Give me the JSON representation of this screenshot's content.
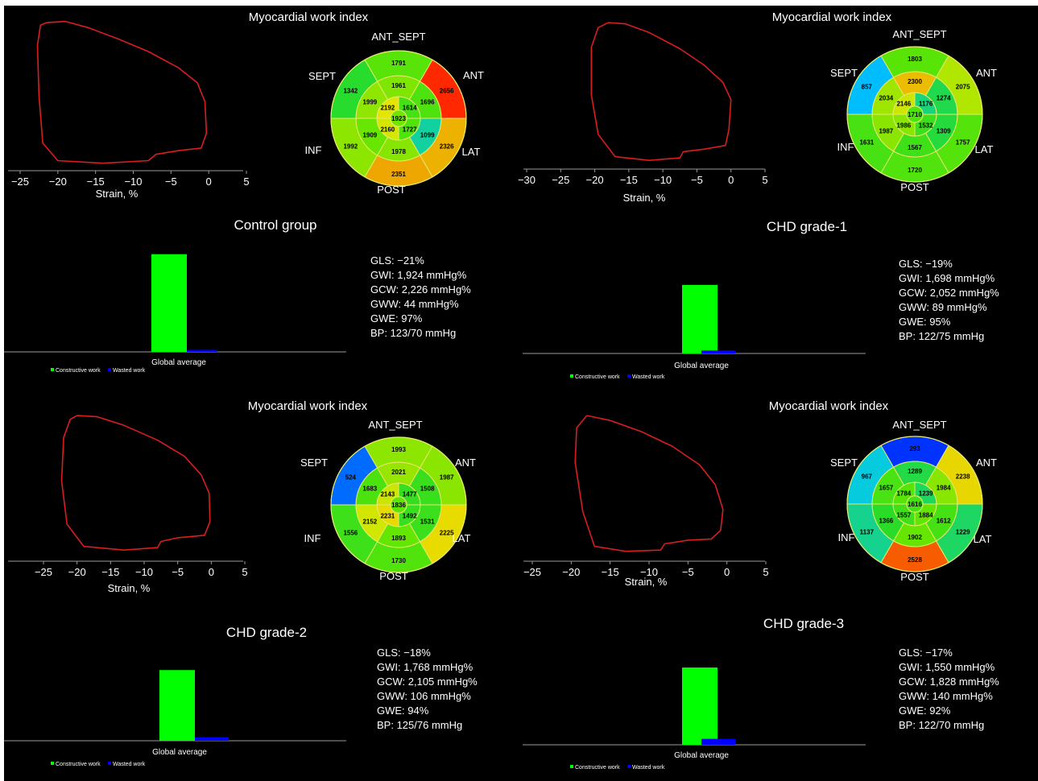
{
  "colors": {
    "background": "#000000",
    "loop": "#d81e1e",
    "constructive": "#00ff00",
    "wasted": "#0000ff",
    "text": "#ffffff"
  },
  "bullseye_labels": [
    "ANT_SEPT",
    "ANT",
    "LAT",
    "POST",
    "INF",
    "SEPT"
  ],
  "chart_data": [
    {
      "panel": "Control group",
      "title": "Myocardial work index",
      "loop": {
        "type": "line",
        "xlabel": "Strain, %",
        "xticks": [
          -25,
          -20,
          -15,
          -10,
          -5,
          0,
          5
        ],
        "xlim": [
          -27,
          5
        ],
        "points": [
          [
            -21.5,
            118
          ],
          [
            -19,
            119
          ],
          [
            -16,
            114
          ],
          [
            -12,
            105
          ],
          [
            -8,
            95
          ],
          [
            -4,
            82
          ],
          [
            -1.5,
            70
          ],
          [
            -0.5,
            55
          ],
          [
            -0.3,
            30
          ],
          [
            -1,
            18
          ],
          [
            -4,
            16
          ],
          [
            -7,
            13
          ],
          [
            -8,
            8
          ],
          [
            -14,
            6
          ],
          [
            -20,
            8
          ],
          [
            -22,
            22
          ],
          [
            -22.5,
            60
          ],
          [
            -22.7,
            100
          ],
          [
            -22.3,
            116
          ],
          [
            -21.5,
            118
          ]
        ]
      },
      "bullseye": {
        "type": "heatmap",
        "outer": {
          "ANT_SEPT": 1791,
          "ANT": 2656,
          "LAT": 2326,
          "POST": 2351,
          "INF": 1992,
          "SEPT": 1342
        },
        "mid": {
          "ANT_SEPT": 1961,
          "ANT": 1696,
          "LAT": 1099,
          "POST": 1978,
          "INF": 1909,
          "SEPT": 1999
        },
        "inner": {
          "ANT": 1614,
          "LAT": 1727,
          "INF": 2160,
          "SEPT": 2192
        },
        "apex": 1923
      },
      "bars": {
        "type": "bar",
        "categories": [
          "Global average"
        ],
        "series": [
          {
            "name": "Constructive work",
            "values": [
              2226
            ]
          },
          {
            "name": "Wasted work",
            "values": [
              44
            ]
          }
        ]
      },
      "stats": [
        "GLS: −21%",
        "GWI: 1,924 mmHg%",
        "GCW: 2,226 mmHg%",
        "GWW: 44 mmHg%",
        "GWE: 97%",
        "BP: 123/70 mmHg"
      ]
    },
    {
      "panel": "CHD grade-1",
      "title": "Myocardial work index",
      "loop": {
        "type": "line",
        "xlabel": "Strain, %",
        "xticks": [
          -30,
          -25,
          -20,
          -15,
          -10,
          -5,
          0,
          5
        ],
        "xlim": [
          -31,
          5
        ],
        "points": [
          [
            -18,
            118
          ],
          [
            -15.5,
            117
          ],
          [
            -12,
            110
          ],
          [
            -7.5,
            97
          ],
          [
            -4,
            84
          ],
          [
            -1.2,
            70
          ],
          [
            0,
            56
          ],
          [
            -0.3,
            32
          ],
          [
            -0.8,
            19
          ],
          [
            -4,
            16
          ],
          [
            -7,
            14
          ],
          [
            -7.5,
            9
          ],
          [
            -12,
            7
          ],
          [
            -17,
            10
          ],
          [
            -19.5,
            28
          ],
          [
            -20.5,
            60
          ],
          [
            -20.5,
            98
          ],
          [
            -19.5,
            114
          ],
          [
            -18,
            118
          ]
        ]
      },
      "bullseye": {
        "type": "heatmap",
        "outer": {
          "ANT_SEPT": 1803,
          "ANT": 2075,
          "LAT": 1757,
          "POST": 1720,
          "INF": 1631,
          "SEPT": 857
        },
        "mid": {
          "ANT_SEPT": 2300,
          "ANT": 1274,
          "LAT": 1309,
          "POST": 1567,
          "INF": 1987,
          "SEPT": 2034
        },
        "inner": {
          "ANT": 1176,
          "LAT": 1532,
          "INF": 1986,
          "SEPT": 2146
        },
        "apex": 1710
      },
      "bars": {
        "type": "bar",
        "categories": [
          "Global average"
        ],
        "series": [
          {
            "name": "Constructive work",
            "values": [
              2052
            ]
          },
          {
            "name": "Wasted work",
            "values": [
              89
            ]
          }
        ]
      },
      "stats": [
        "GLS: −19%",
        "GWI: 1,698 mmHg%",
        "GCW: 2,052 mmHg%",
        "GWW: 89 mmHg%",
        "GWE: 95%",
        "BP: 122/75 mmHg"
      ]
    },
    {
      "panel": "CHD grade-2",
      "title": "Myocardial work index",
      "loop": {
        "type": "line",
        "xlabel": "Strain, %",
        "xticks": [
          -25,
          -20,
          -15,
          -10,
          -5,
          0,
          5
        ],
        "xlim": [
          -28,
          5
        ],
        "points": [
          [
            -20,
            118
          ],
          [
            -17,
            117
          ],
          [
            -13,
            110
          ],
          [
            -8,
            98
          ],
          [
            -4,
            85
          ],
          [
            -1.5,
            70
          ],
          [
            -0.3,
            55
          ],
          [
            -0.2,
            32
          ],
          [
            -1,
            21
          ],
          [
            -5,
            19
          ],
          [
            -7.5,
            16
          ],
          [
            -8,
            11
          ],
          [
            -13,
            9
          ],
          [
            -19,
            12
          ],
          [
            -21.5,
            30
          ],
          [
            -22.3,
            65
          ],
          [
            -22,
            100
          ],
          [
            -21,
            115
          ],
          [
            -20,
            118
          ]
        ]
      },
      "bullseye": {
        "type": "heatmap",
        "outer": {
          "ANT_SEPT": 1993,
          "ANT": 1987,
          "LAT": 2225,
          "POST": 1730,
          "INF": 1556,
          "SEPT": 524
        },
        "mid": {
          "ANT_SEPT": 2021,
          "ANT": 1508,
          "LAT": 1531,
          "POST": 1893,
          "INF": 2152,
          "SEPT": 1683
        },
        "inner": {
          "ANT": 1477,
          "LAT": 1492,
          "INF": 2231,
          "SEPT": 2143
        },
        "apex": 1836
      },
      "bars": {
        "type": "bar",
        "categories": [
          "Global average"
        ],
        "series": [
          {
            "name": "Constructive work",
            "values": [
              2105
            ]
          },
          {
            "name": "Wasted work",
            "values": [
              106
            ]
          }
        ]
      },
      "stats": [
        "GLS: −18%",
        "GWI: 1,768 mmHg%",
        "GCW: 2,105 mmHg%",
        "GWW: 106 mmHg%",
        "GWE: 94%",
        "BP: 125/76 mmHg"
      ]
    },
    {
      "panel": "CHD grade-3",
      "title": "Myocardial work index",
      "loop": {
        "type": "line",
        "xlabel": "Strain, %",
        "xticks": [
          -25,
          -20,
          -15,
          -10,
          -5,
          0,
          5
        ],
        "xlim": [
          -27,
          5
        ],
        "points": [
          [
            -18,
            118
          ],
          [
            -15,
            114
          ],
          [
            -11,
            105
          ],
          [
            -7,
            93
          ],
          [
            -3.5,
            78
          ],
          [
            -1.5,
            62
          ],
          [
            -0.5,
            42
          ],
          [
            -0.8,
            25
          ],
          [
            -2,
            18
          ],
          [
            -5,
            17
          ],
          [
            -8,
            14
          ],
          [
            -8.5,
            9
          ],
          [
            -13,
            8
          ],
          [
            -17,
            12
          ],
          [
            -18.5,
            40
          ],
          [
            -19.5,
            80
          ],
          [
            -19.3,
            108
          ],
          [
            -18,
            118
          ]
        ]
      },
      "bullseye": {
        "type": "heatmap",
        "outer": {
          "ANT_SEPT": 293,
          "ANT": 2238,
          "LAT": 1229,
          "POST": 2528,
          "INF": 1137,
          "SEPT": 967
        },
        "mid": {
          "ANT_SEPT": 1289,
          "ANT": 1984,
          "LAT": 1612,
          "POST": 1902,
          "INF": 1366,
          "SEPT": 1657
        },
        "inner": {
          "ANT": 1239,
          "LAT": 1884,
          "INF": 1557,
          "SEPT": 1784
        },
        "apex": 1616
      },
      "bars": {
        "type": "bar",
        "categories": [
          "Global average"
        ],
        "series": [
          {
            "name": "Constructive work",
            "values": [
              1828
            ]
          },
          {
            "name": "Wasted work",
            "values": [
              140
            ]
          }
        ]
      },
      "stats": [
        "GLS: −17%",
        "GWI: 1,550 mmHg%",
        "GCW: 1,828 mmHg%",
        "GWW: 140 mmHg%",
        "GWE: 92%",
        "BP: 122/70 mmHg"
      ]
    }
  ]
}
